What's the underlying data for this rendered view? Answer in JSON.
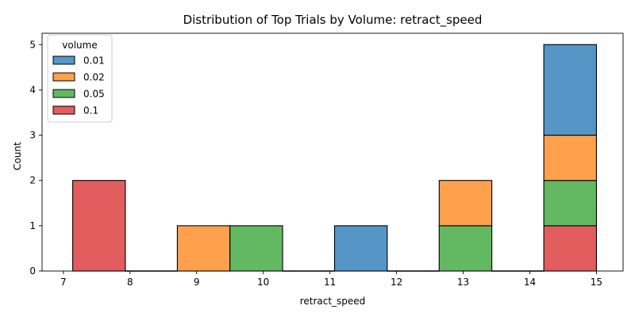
{
  "chart_data": {
    "type": "bar",
    "title": "Distribution of Top Trials by Volume: retract_speed",
    "xlabel": "retract_speed",
    "ylabel": "Count",
    "xlim": [
      6.68,
      15.4
    ],
    "ylim": [
      0,
      5.25
    ],
    "xticks": [
      "7",
      "8",
      "9",
      "10",
      "11",
      "12",
      "13",
      "14",
      "15"
    ],
    "yticks": [
      "0",
      "1",
      "2",
      "3",
      "4",
      "5"
    ],
    "bin_edges": [
      7.14,
      7.93,
      8.71,
      9.5,
      10.29,
      11.07,
      11.86,
      12.64,
      13.43,
      14.21,
      15.0
    ],
    "stack_order": [
      "0.1",
      "0.05",
      "0.02",
      "0.01"
    ],
    "legend": {
      "title": "volume",
      "placement": "upper-left",
      "entries": [
        "0.01",
        "0.02",
        "0.05",
        "0.1"
      ]
    },
    "series": [
      {
        "name": "0.01",
        "color": "#5596c7",
        "counts": [
          0,
          0,
          0,
          0,
          0,
          1,
          0,
          0,
          0,
          2
        ]
      },
      {
        "name": "0.02",
        "color": "#fea04c",
        "counts": [
          0,
          0,
          1,
          0,
          0,
          0,
          0,
          1,
          0,
          1
        ]
      },
      {
        "name": "0.05",
        "color": "#62b962",
        "counts": [
          0,
          0,
          0,
          1,
          0,
          0,
          0,
          1,
          0,
          1
        ]
      },
      {
        "name": "0.1",
        "color": "#e15d5e",
        "counts": [
          2,
          0,
          0,
          0,
          0,
          0,
          0,
          0,
          0,
          1
        ]
      }
    ]
  }
}
